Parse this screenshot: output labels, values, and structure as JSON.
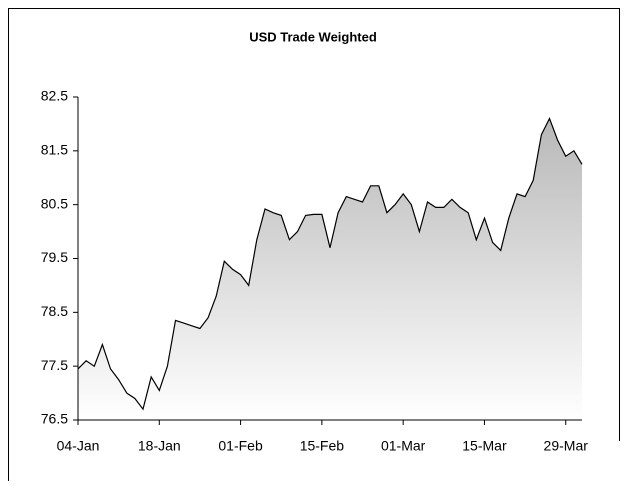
{
  "chart_data": {
    "type": "area",
    "title": "USD Trade Weighted",
    "categories": [
      "04-Jan",
      null,
      null,
      null,
      null,
      null,
      null,
      null,
      null,
      null,
      "18-Jan",
      null,
      null,
      null,
      null,
      null,
      null,
      null,
      null,
      null,
      "01-Feb",
      null,
      null,
      null,
      null,
      null,
      null,
      null,
      null,
      null,
      "15-Feb",
      null,
      null,
      null,
      null,
      null,
      null,
      null,
      null,
      null,
      "01-Mar",
      null,
      null,
      null,
      null,
      null,
      null,
      null,
      null,
      null,
      "15-Mar",
      null,
      null,
      null,
      null,
      null,
      null,
      null,
      null,
      null,
      "29-Mar",
      null,
      null
    ],
    "values": [
      77.45,
      77.6,
      77.5,
      77.9,
      77.45,
      77.25,
      77.0,
      76.9,
      76.7,
      77.3,
      77.05,
      77.5,
      78.35,
      78.3,
      78.25,
      78.2,
      78.4,
      78.8,
      79.45,
      79.3,
      79.2,
      79.0,
      79.85,
      80.42,
      80.35,
      80.3,
      79.85,
      80.0,
      80.3,
      80.32,
      80.32,
      79.7,
      80.35,
      80.65,
      80.6,
      80.55,
      80.85,
      80.85,
      80.35,
      80.5,
      80.7,
      80.5,
      80.0,
      80.55,
      80.45,
      80.45,
      80.6,
      80.45,
      80.35,
      79.85,
      80.25,
      79.8,
      79.65,
      80.25,
      80.7,
      80.65,
      80.95,
      81.8,
      82.1,
      81.7,
      81.4,
      81.5,
      81.25
    ],
    "color": "#000000",
    "fill_top": "#b8b8b8",
    "fill_bottom": "#ffffff",
    "ylim": [
      76.5,
      82.5
    ],
    "yticks": [
      76.5,
      77.5,
      78.5,
      79.5,
      80.5,
      81.5,
      82.5
    ]
  }
}
